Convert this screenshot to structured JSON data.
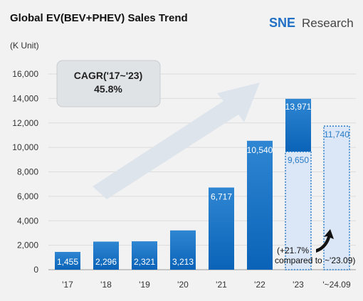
{
  "header": {
    "title": "Global EV(BEV+PHEV) Sales Trend",
    "unit": "(K Unit)",
    "logo": {
      "sne": "SNE",
      "research": "Research"
    }
  },
  "cagr": {
    "line1": "CAGR('17~'23)",
    "line2": "45.8%"
  },
  "note": {
    "line1": "(+21.7%",
    "line2": "compared to ~'23.09)"
  },
  "colors": {
    "bar_top": "#2f86d2",
    "bar_bottom": "#0b63b8",
    "forecast_fill": "#dbe6f6",
    "forecast_border": "#2a7cc7",
    "arrow": "#dde4eb"
  },
  "chart_data": {
    "type": "bar",
    "categories": [
      "'17",
      "'18",
      "'19",
      "'20",
      "'21",
      "'22",
      "'23",
      "'~24.09"
    ],
    "values": [
      1455,
      2296,
      2321,
      3213,
      6717,
      10540,
      13971,
      11740
    ],
    "value_labels": [
      "1,455",
      "2,296",
      "2,321",
      "3,213",
      "6,717",
      "10,540",
      "13,971",
      "11,740"
    ],
    "secondary_label": {
      "category": "'23",
      "value": 9650,
      "label": "9,650"
    },
    "ylim": [
      0,
      16000
    ],
    "yticks": [
      0,
      2000,
      4000,
      6000,
      8000,
      10000,
      12000,
      14000,
      16000
    ],
    "ytick_labels": [
      "0",
      "2,000",
      "4,000",
      "6,000",
      "8,000",
      "10,000",
      "12,000",
      "14,000",
      "16,000"
    ],
    "ylabel": "(K Unit)",
    "grid": true
  }
}
